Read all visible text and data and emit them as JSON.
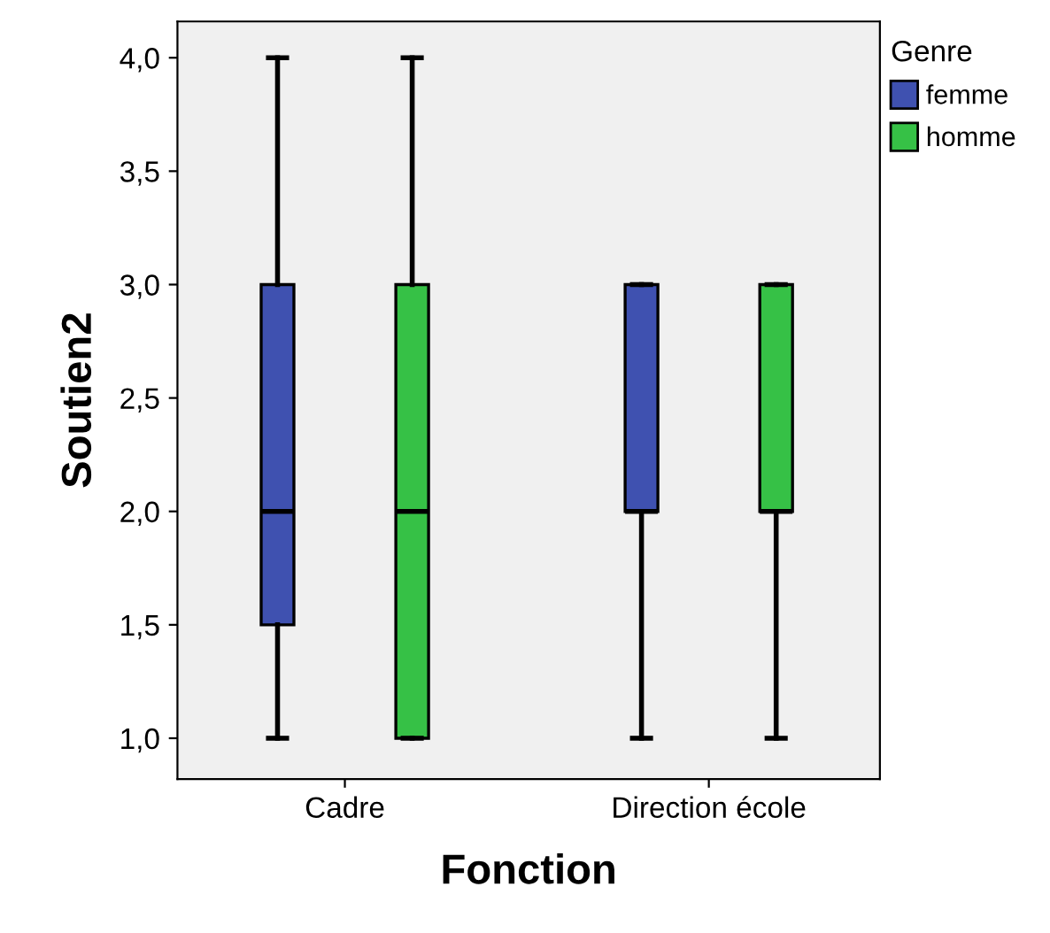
{
  "chart_data": {
    "type": "box",
    "xlabel": "Fonction",
    "ylabel": "Soutien2",
    "legend_title": "Genre",
    "legend": "top right",
    "grid": false,
    "categories": [
      "Cadre",
      "Direction école"
    ],
    "ylim": [
      0.82,
      4.16
    ],
    "yticks": [
      {
        "value": 1.0,
        "label": "1,0"
      },
      {
        "value": 1.5,
        "label": "1,5"
      },
      {
        "value": 2.0,
        "label": "2,0"
      },
      {
        "value": 2.5,
        "label": "2,5"
      },
      {
        "value": 3.0,
        "label": "3,0"
      },
      {
        "value": 3.5,
        "label": "3,5"
      },
      {
        "value": 4.0,
        "label": "4,0"
      }
    ],
    "series": [
      {
        "name": "femme",
        "color": "#3f51b0",
        "boxes": [
          {
            "low": 1,
            "q1": 1.5,
            "median": 2,
            "q3": 3,
            "high": 4
          },
          {
            "low": 1,
            "q1": 2,
            "median": 2,
            "q3": 3,
            "high": 3
          }
        ]
      },
      {
        "name": "homme",
        "color": "#36c146",
        "boxes": [
          {
            "low": 1,
            "q1": 1,
            "median": 2,
            "q3": 3,
            "high": 4
          },
          {
            "low": 1,
            "q1": 2,
            "median": 2,
            "q3": 3,
            "high": 3
          }
        ]
      }
    ]
  }
}
